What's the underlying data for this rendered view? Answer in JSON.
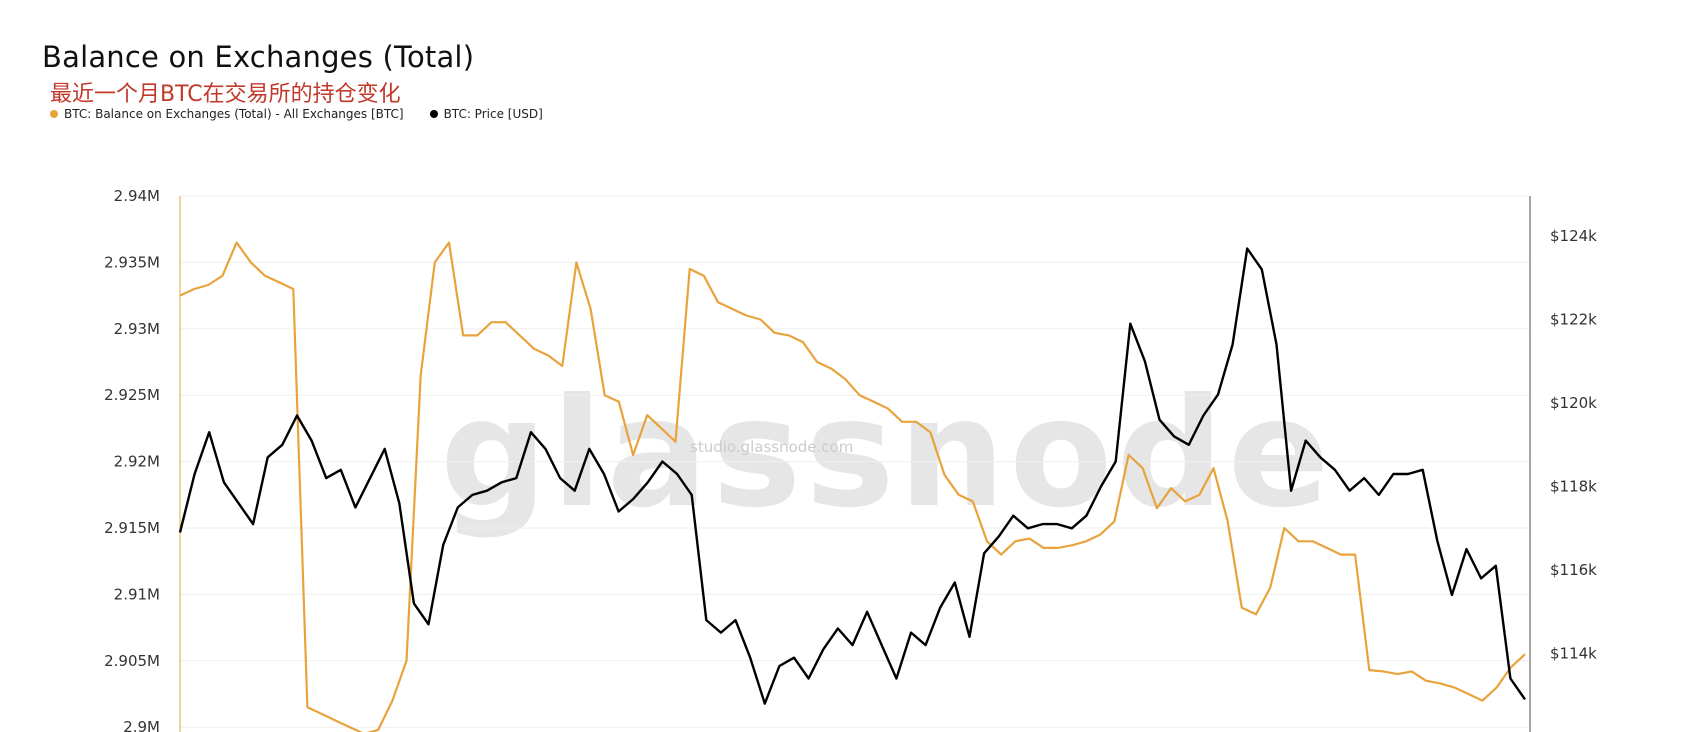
{
  "chart_data": {
    "type": "line",
    "title": "Balance on Exchanges (Total)",
    "subtitle": "最近一个月BTC在交易所的持仓变化",
    "legend": [
      {
        "name": "BTC: Balance on Exchanges (Total) - All Exchanges [BTC]",
        "color": "#e8a33d"
      },
      {
        "name": "BTC: Price [USD]",
        "color": "#000000"
      }
    ],
    "watermark": "glassnode",
    "watermark_sub": "studio.glassnode.com",
    "y_left": {
      "ticks": [
        "2.94M",
        "2.935M",
        "2.93M",
        "2.925M",
        "2.92M",
        "2.915M",
        "2.91M",
        "2.905M",
        "2.9M"
      ],
      "tick_values": [
        2.94,
        2.935,
        2.93,
        2.925,
        2.92,
        2.915,
        2.91,
        2.905,
        2.9
      ],
      "unit": "M BTC"
    },
    "y_right": {
      "ticks": [
        "$124k",
        "$122k",
        "$120k",
        "$118k",
        "$116k",
        "$114k"
      ],
      "tick_values": [
        124,
        122,
        120,
        118,
        116,
        114
      ],
      "unit": "k USD"
    },
    "grid": true,
    "series": [
      {
        "name": "BTC: Balance on Exchanges (Total) - All Exchanges [BTC]",
        "axis": "left",
        "color": "#e8a33d",
        "values": [
          2.9325,
          2.933,
          2.9333,
          2.934,
          2.9365,
          2.935,
          2.934,
          2.9335,
          2.933,
          2.9015,
          2.901,
          2.9005,
          2.9,
          2.8995,
          2.8998,
          2.902,
          2.905,
          2.9265,
          2.935,
          2.9365,
          2.9295,
          2.9295,
          2.9305,
          2.9305,
          2.9295,
          2.9285,
          2.928,
          2.9272,
          2.935,
          2.9315,
          2.925,
          2.9245,
          2.9205,
          2.9235,
          2.9225,
          2.9215,
          2.9345,
          2.934,
          2.932,
          2.9315,
          2.931,
          2.9307,
          2.9297,
          2.9295,
          2.929,
          2.9275,
          2.927,
          2.9262,
          2.925,
          2.9245,
          2.924,
          2.923,
          2.923,
          2.9222,
          2.919,
          2.9175,
          2.917,
          2.914,
          2.913,
          2.914,
          2.9142,
          2.9135,
          2.9135,
          2.9137,
          2.914,
          2.9145,
          2.9155,
          2.9205,
          2.9195,
          2.9165,
          2.918,
          2.917,
          2.9175,
          2.9195,
          2.9155,
          2.909,
          2.9085,
          2.9105,
          2.915,
          2.914,
          2.914,
          2.9135,
          2.913,
          2.913,
          2.9043,
          2.9042,
          2.904,
          2.9042,
          2.9035,
          2.9033,
          2.903,
          2.9025,
          2.902,
          2.903,
          2.9045,
          2.9055
        ]
      },
      {
        "name": "BTC: Price [USD]",
        "axis": "right",
        "color": "#000000",
        "values": [
          116.9,
          118.3,
          119.3,
          118.1,
          117.6,
          117.1,
          118.7,
          119.0,
          119.7,
          119.1,
          118.2,
          118.4,
          117.5,
          118.2,
          118.9,
          117.6,
          115.2,
          114.7,
          116.6,
          117.5,
          117.8,
          117.9,
          118.1,
          118.2,
          119.3,
          118.9,
          118.2,
          117.9,
          118.9,
          118.3,
          117.4,
          117.7,
          118.1,
          118.6,
          118.3,
          117.8,
          114.8,
          114.5,
          114.8,
          113.9,
          112.8,
          113.7,
          113.9,
          113.4,
          114.1,
          114.6,
          114.2,
          115.0,
          114.2,
          113.4,
          114.5,
          114.2,
          115.1,
          115.7,
          114.4,
          116.4,
          116.8,
          117.3,
          117.0,
          117.1,
          117.1,
          117.0,
          117.3,
          118.0,
          118.6,
          121.9,
          121.0,
          119.6,
          119.2,
          119.0,
          119.7,
          120.2,
          121.4,
          123.7,
          123.2,
          121.4,
          117.9,
          119.1,
          118.7,
          118.4,
          117.9,
          118.2,
          117.8,
          118.3,
          118.3,
          118.4,
          116.7,
          115.4,
          116.5,
          115.8,
          116.1,
          113.4,
          112.9
        ]
      }
    ]
  }
}
